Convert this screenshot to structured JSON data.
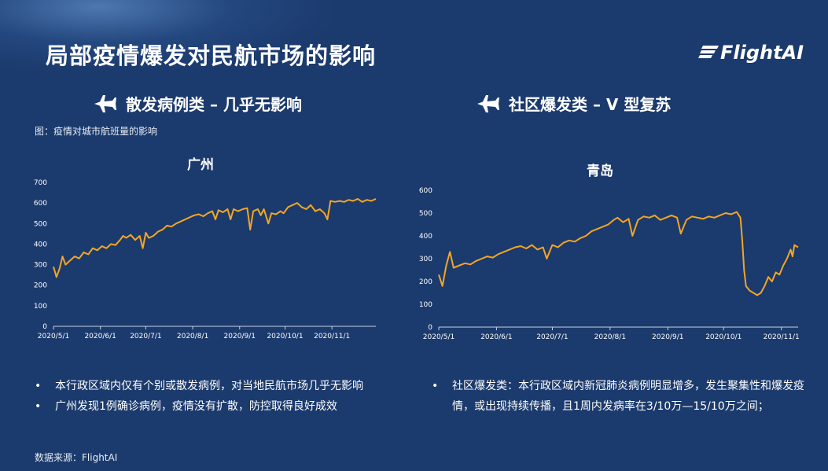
{
  "page": {
    "title": "局部疫情爆发对民航市场的影响",
    "logo_text": "FlightAI",
    "figure_caption": "图：疫情对城市航班量的影响",
    "source": "数据来源：FlightAI"
  },
  "sections": [
    {
      "heading": "散发病例类 – 几乎无影响",
      "bullets": [
        "本行政区域内仅有个别或散发病例，对当地民航市场几乎无影响",
        "广州发现1例确诊病例，疫情没有扩散，防控取得良好成效"
      ]
    },
    {
      "heading": "社区爆发类 – V 型复苏",
      "bullets": [
        "社区爆发类：本行政区域内新冠肺炎病例明显增多，发生聚集性和爆发疫情，或出现持续传播，且1周内发病率在3/10万—15/10万之间；"
      ]
    }
  ],
  "colors": {
    "background": "#1b3a6d",
    "line": "#f5a623",
    "text": "#ffffff"
  },
  "chart_data": [
    {
      "type": "line",
      "title": "广州",
      "x_ticks": [
        "2020/5/1",
        "2020/6/1",
        "2020/7/1",
        "2020/8/1",
        "2020/9/1",
        "2020/10/1",
        "2020/11/1"
      ],
      "ylim": [
        0,
        700
      ],
      "y_ticks": [
        0,
        100,
        200,
        300,
        400,
        500,
        600,
        700
      ],
      "x_start": "2020-05-01",
      "x_end": "2020-11-30",
      "series": [
        {
          "points": [
            [
              "2020-05-01",
              290
            ],
            [
              "2020-05-03",
              240
            ],
            [
              "2020-05-05",
              280
            ],
            [
              "2020-05-07",
              340
            ],
            [
              "2020-05-09",
              300
            ],
            [
              "2020-05-12",
              320
            ],
            [
              "2020-05-15",
              340
            ],
            [
              "2020-05-18",
              330
            ],
            [
              "2020-05-21",
              360
            ],
            [
              "2020-05-24",
              350
            ],
            [
              "2020-05-27",
              380
            ],
            [
              "2020-05-30",
              370
            ],
            [
              "2020-06-02",
              390
            ],
            [
              "2020-06-05",
              380
            ],
            [
              "2020-06-08",
              400
            ],
            [
              "2020-06-11",
              395
            ],
            [
              "2020-06-14",
              420
            ],
            [
              "2020-06-16",
              440
            ],
            [
              "2020-06-18",
              430
            ],
            [
              "2020-06-21",
              445
            ],
            [
              "2020-06-24",
              420
            ],
            [
              "2020-06-27",
              440
            ],
            [
              "2020-06-29",
              380
            ],
            [
              "2020-07-01",
              455
            ],
            [
              "2020-07-03",
              430
            ],
            [
              "2020-07-06",
              440
            ],
            [
              "2020-07-09",
              460
            ],
            [
              "2020-07-12",
              470
            ],
            [
              "2020-07-15",
              490
            ],
            [
              "2020-07-18",
              485
            ],
            [
              "2020-07-21",
              500
            ],
            [
              "2020-07-24",
              510
            ],
            [
              "2020-07-27",
              520
            ],
            [
              "2020-07-30",
              530
            ],
            [
              "2020-08-02",
              540
            ],
            [
              "2020-08-05",
              545
            ],
            [
              "2020-08-08",
              535
            ],
            [
              "2020-08-11",
              550
            ],
            [
              "2020-08-14",
              560
            ],
            [
              "2020-08-16",
              520
            ],
            [
              "2020-08-18",
              565
            ],
            [
              "2020-08-21",
              555
            ],
            [
              "2020-08-24",
              570
            ],
            [
              "2020-08-26",
              520
            ],
            [
              "2020-08-28",
              570
            ],
            [
              "2020-08-31",
              560
            ],
            [
              "2020-09-03",
              570
            ],
            [
              "2020-09-06",
              575
            ],
            [
              "2020-09-08",
              470
            ],
            [
              "2020-09-10",
              560
            ],
            [
              "2020-09-13",
              570
            ],
            [
              "2020-09-15",
              540
            ],
            [
              "2020-09-17",
              570
            ],
            [
              "2020-09-20",
              500
            ],
            [
              "2020-09-22",
              550
            ],
            [
              "2020-09-25",
              545
            ],
            [
              "2020-09-28",
              560
            ],
            [
              "2020-09-30",
              550
            ],
            [
              "2020-10-03",
              580
            ],
            [
              "2020-10-06",
              590
            ],
            [
              "2020-10-09",
              600
            ],
            [
              "2020-10-12",
              580
            ],
            [
              "2020-10-15",
              570
            ],
            [
              "2020-10-18",
              590
            ],
            [
              "2020-10-21",
              560
            ],
            [
              "2020-10-24",
              570
            ],
            [
              "2020-10-27",
              550
            ],
            [
              "2020-10-29",
              520
            ],
            [
              "2020-10-31",
              610
            ],
            [
              "2020-11-03",
              605
            ],
            [
              "2020-11-06",
              610
            ],
            [
              "2020-11-09",
              605
            ],
            [
              "2020-11-12",
              615
            ],
            [
              "2020-11-15",
              610
            ],
            [
              "2020-11-18",
              620
            ],
            [
              "2020-11-21",
              605
            ],
            [
              "2020-11-24",
              615
            ],
            [
              "2020-11-27",
              610
            ],
            [
              "2020-11-30",
              620
            ]
          ]
        }
      ]
    },
    {
      "type": "line",
      "title": "青岛",
      "x_ticks": [
        "2020/5/1",
        "2020/6/1",
        "2020/7/1",
        "2020/8/1",
        "2020/9/1",
        "2020/10/1",
        "2020/11/1"
      ],
      "ylim": [
        0,
        600
      ],
      "y_ticks": [
        0,
        100,
        200,
        300,
        400,
        500,
        600
      ],
      "x_start": "2020-05-01",
      "x_end": "2020-11-10",
      "series": [
        {
          "points": [
            [
              "2020-05-01",
              230
            ],
            [
              "2020-05-03",
              180
            ],
            [
              "2020-05-05",
              270
            ],
            [
              "2020-05-07",
              330
            ],
            [
              "2020-05-09",
              260
            ],
            [
              "2020-05-12",
              270
            ],
            [
              "2020-05-15",
              280
            ],
            [
              "2020-05-18",
              275
            ],
            [
              "2020-05-21",
              290
            ],
            [
              "2020-05-24",
              300
            ],
            [
              "2020-05-27",
              310
            ],
            [
              "2020-05-30",
              305
            ],
            [
              "2020-06-02",
              320
            ],
            [
              "2020-06-05",
              330
            ],
            [
              "2020-06-08",
              340
            ],
            [
              "2020-06-11",
              350
            ],
            [
              "2020-06-14",
              355
            ],
            [
              "2020-06-17",
              345
            ],
            [
              "2020-06-20",
              360
            ],
            [
              "2020-06-23",
              340
            ],
            [
              "2020-06-26",
              350
            ],
            [
              "2020-06-28",
              300
            ],
            [
              "2020-07-01",
              360
            ],
            [
              "2020-07-04",
              350
            ],
            [
              "2020-07-07",
              370
            ],
            [
              "2020-07-10",
              380
            ],
            [
              "2020-07-13",
              375
            ],
            [
              "2020-07-16",
              390
            ],
            [
              "2020-07-19",
              400
            ],
            [
              "2020-07-22",
              420
            ],
            [
              "2020-07-25",
              430
            ],
            [
              "2020-07-28",
              440
            ],
            [
              "2020-07-31",
              450
            ],
            [
              "2020-08-03",
              470
            ],
            [
              "2020-08-05",
              480
            ],
            [
              "2020-08-08",
              460
            ],
            [
              "2020-08-11",
              475
            ],
            [
              "2020-08-13",
              400
            ],
            [
              "2020-08-16",
              470
            ],
            [
              "2020-08-19",
              485
            ],
            [
              "2020-08-22",
              480
            ],
            [
              "2020-08-25",
              490
            ],
            [
              "2020-08-28",
              470
            ],
            [
              "2020-08-31",
              480
            ],
            [
              "2020-09-03",
              490
            ],
            [
              "2020-09-06",
              480
            ],
            [
              "2020-09-08",
              410
            ],
            [
              "2020-09-11",
              470
            ],
            [
              "2020-09-14",
              485
            ],
            [
              "2020-09-17",
              480
            ],
            [
              "2020-09-20",
              475
            ],
            [
              "2020-09-23",
              485
            ],
            [
              "2020-09-26",
              480
            ],
            [
              "2020-09-29",
              490
            ],
            [
              "2020-10-02",
              500
            ],
            [
              "2020-10-05",
              495
            ],
            [
              "2020-10-08",
              505
            ],
            [
              "2020-10-10",
              480
            ],
            [
              "2020-10-11",
              380
            ],
            [
              "2020-10-12",
              250
            ],
            [
              "2020-10-13",
              180
            ],
            [
              "2020-10-15",
              160
            ],
            [
              "2020-10-17",
              150
            ],
            [
              "2020-10-19",
              140
            ],
            [
              "2020-10-21",
              150
            ],
            [
              "2020-10-23",
              180
            ],
            [
              "2020-10-25",
              220
            ],
            [
              "2020-10-27",
              200
            ],
            [
              "2020-10-29",
              240
            ],
            [
              "2020-10-31",
              230
            ],
            [
              "2020-11-02",
              270
            ],
            [
              "2020-11-04",
              300
            ],
            [
              "2020-11-06",
              340
            ],
            [
              "2020-11-07",
              310
            ],
            [
              "2020-11-08",
              360
            ],
            [
              "2020-11-10",
              350
            ]
          ]
        }
      ]
    }
  ]
}
